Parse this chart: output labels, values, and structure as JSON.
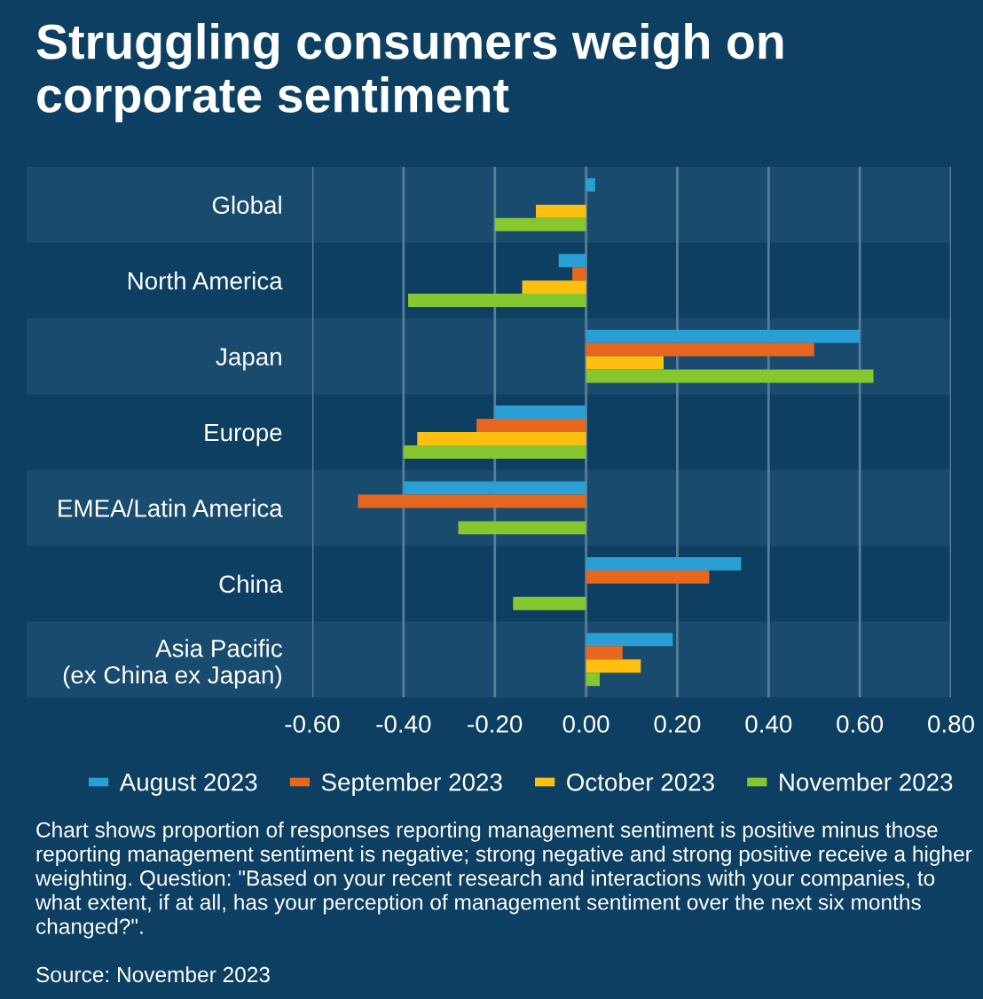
{
  "chart_data": {
    "type": "bar",
    "orientation": "horizontal",
    "title": "Struggling consumers weigh on corporate sentiment",
    "categories": [
      "Global",
      "North America",
      "Japan",
      "Europe",
      "EMEA/Latin America",
      "China",
      "Asia Pacific\n(ex China ex Japan)"
    ],
    "series": [
      {
        "name": "August 2023",
        "color": "#2a9fd6",
        "values": [
          0.02,
          -0.06,
          0.6,
          -0.2,
          -0.4,
          0.34,
          0.19
        ]
      },
      {
        "name": "September 2023",
        "color": "#e8671f",
        "values": [
          null,
          -0.03,
          0.5,
          -0.24,
          -0.5,
          0.27,
          0.08
        ]
      },
      {
        "name": "October 2023",
        "color": "#fdc010",
        "values": [
          -0.11,
          -0.14,
          0.17,
          -0.37,
          null,
          null,
          0.12
        ]
      },
      {
        "name": "November 2023",
        "color": "#86c62f",
        "values": [
          -0.2,
          -0.39,
          0.63,
          -0.4,
          -0.28,
          -0.16,
          0.03
        ]
      }
    ],
    "xlim": [
      -0.6,
      0.8
    ],
    "xticks": [
      {
        "value": -0.6,
        "label": "-0.60"
      },
      {
        "value": -0.4,
        "label": "-0.40"
      },
      {
        "value": -0.2,
        "label": "-0.20"
      },
      {
        "value": 0,
        "label": "0.00"
      },
      {
        "value": 0.2,
        "label": "0.20"
      },
      {
        "value": 0.4,
        "label": "0.40"
      },
      {
        "value": 0.6,
        "label": "0.60"
      },
      {
        "value": 0.8,
        "label": "0.80"
      }
    ],
    "grid": "x",
    "legend": "bottom",
    "annotations": [
      "Chart shows proportion of responses reporting management sentiment is positive minus those reporting management sentiment is negative; strong negative and strong positive receive a higher weighting. Question: \"Based on your recent research and interactions with your companies, to what extent, if at all, has your perception of management sentiment over the next six months changed?\".",
      "Source: November 2023"
    ]
  }
}
